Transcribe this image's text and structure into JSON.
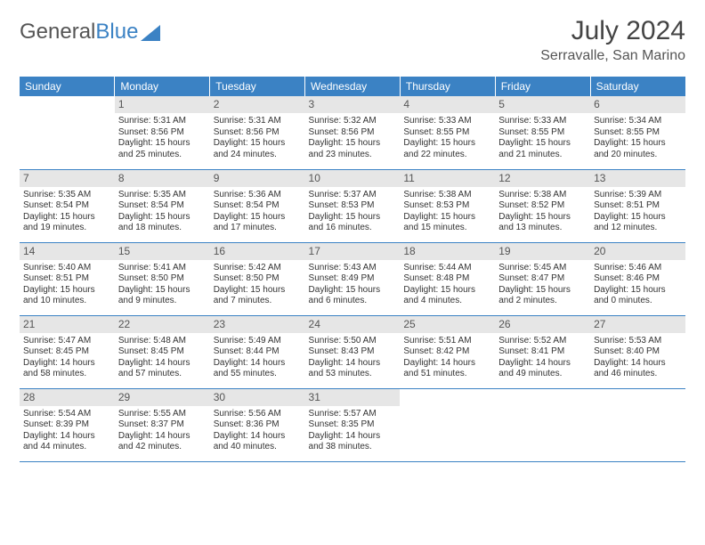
{
  "logo": {
    "text1": "General",
    "text2": "Blue"
  },
  "title": "July 2024",
  "location": "Serravalle, San Marino",
  "dayHeaders": [
    "Sunday",
    "Monday",
    "Tuesday",
    "Wednesday",
    "Thursday",
    "Friday",
    "Saturday"
  ],
  "colors": {
    "header_bg": "#3b82c4",
    "header_fg": "#ffffff",
    "daynum_bg": "#e6e6e6",
    "row_border": "#3b82c4"
  },
  "weeks": [
    [
      null,
      {
        "n": "1",
        "sr": "Sunrise: 5:31 AM",
        "ss": "Sunset: 8:56 PM",
        "d1": "Daylight: 15 hours",
        "d2": "and 25 minutes."
      },
      {
        "n": "2",
        "sr": "Sunrise: 5:31 AM",
        "ss": "Sunset: 8:56 PM",
        "d1": "Daylight: 15 hours",
        "d2": "and 24 minutes."
      },
      {
        "n": "3",
        "sr": "Sunrise: 5:32 AM",
        "ss": "Sunset: 8:56 PM",
        "d1": "Daylight: 15 hours",
        "d2": "and 23 minutes."
      },
      {
        "n": "4",
        "sr": "Sunrise: 5:33 AM",
        "ss": "Sunset: 8:55 PM",
        "d1": "Daylight: 15 hours",
        "d2": "and 22 minutes."
      },
      {
        "n": "5",
        "sr": "Sunrise: 5:33 AM",
        "ss": "Sunset: 8:55 PM",
        "d1": "Daylight: 15 hours",
        "d2": "and 21 minutes."
      },
      {
        "n": "6",
        "sr": "Sunrise: 5:34 AM",
        "ss": "Sunset: 8:55 PM",
        "d1": "Daylight: 15 hours",
        "d2": "and 20 minutes."
      }
    ],
    [
      {
        "n": "7",
        "sr": "Sunrise: 5:35 AM",
        "ss": "Sunset: 8:54 PM",
        "d1": "Daylight: 15 hours",
        "d2": "and 19 minutes."
      },
      {
        "n": "8",
        "sr": "Sunrise: 5:35 AM",
        "ss": "Sunset: 8:54 PM",
        "d1": "Daylight: 15 hours",
        "d2": "and 18 minutes."
      },
      {
        "n": "9",
        "sr": "Sunrise: 5:36 AM",
        "ss": "Sunset: 8:54 PM",
        "d1": "Daylight: 15 hours",
        "d2": "and 17 minutes."
      },
      {
        "n": "10",
        "sr": "Sunrise: 5:37 AM",
        "ss": "Sunset: 8:53 PM",
        "d1": "Daylight: 15 hours",
        "d2": "and 16 minutes."
      },
      {
        "n": "11",
        "sr": "Sunrise: 5:38 AM",
        "ss": "Sunset: 8:53 PM",
        "d1": "Daylight: 15 hours",
        "d2": "and 15 minutes."
      },
      {
        "n": "12",
        "sr": "Sunrise: 5:38 AM",
        "ss": "Sunset: 8:52 PM",
        "d1": "Daylight: 15 hours",
        "d2": "and 13 minutes."
      },
      {
        "n": "13",
        "sr": "Sunrise: 5:39 AM",
        "ss": "Sunset: 8:51 PM",
        "d1": "Daylight: 15 hours",
        "d2": "and 12 minutes."
      }
    ],
    [
      {
        "n": "14",
        "sr": "Sunrise: 5:40 AM",
        "ss": "Sunset: 8:51 PM",
        "d1": "Daylight: 15 hours",
        "d2": "and 10 minutes."
      },
      {
        "n": "15",
        "sr": "Sunrise: 5:41 AM",
        "ss": "Sunset: 8:50 PM",
        "d1": "Daylight: 15 hours",
        "d2": "and 9 minutes."
      },
      {
        "n": "16",
        "sr": "Sunrise: 5:42 AM",
        "ss": "Sunset: 8:50 PM",
        "d1": "Daylight: 15 hours",
        "d2": "and 7 minutes."
      },
      {
        "n": "17",
        "sr": "Sunrise: 5:43 AM",
        "ss": "Sunset: 8:49 PM",
        "d1": "Daylight: 15 hours",
        "d2": "and 6 minutes."
      },
      {
        "n": "18",
        "sr": "Sunrise: 5:44 AM",
        "ss": "Sunset: 8:48 PM",
        "d1": "Daylight: 15 hours",
        "d2": "and 4 minutes."
      },
      {
        "n": "19",
        "sr": "Sunrise: 5:45 AM",
        "ss": "Sunset: 8:47 PM",
        "d1": "Daylight: 15 hours",
        "d2": "and 2 minutes."
      },
      {
        "n": "20",
        "sr": "Sunrise: 5:46 AM",
        "ss": "Sunset: 8:46 PM",
        "d1": "Daylight: 15 hours",
        "d2": "and 0 minutes."
      }
    ],
    [
      {
        "n": "21",
        "sr": "Sunrise: 5:47 AM",
        "ss": "Sunset: 8:45 PM",
        "d1": "Daylight: 14 hours",
        "d2": "and 58 minutes."
      },
      {
        "n": "22",
        "sr": "Sunrise: 5:48 AM",
        "ss": "Sunset: 8:45 PM",
        "d1": "Daylight: 14 hours",
        "d2": "and 57 minutes."
      },
      {
        "n": "23",
        "sr": "Sunrise: 5:49 AM",
        "ss": "Sunset: 8:44 PM",
        "d1": "Daylight: 14 hours",
        "d2": "and 55 minutes."
      },
      {
        "n": "24",
        "sr": "Sunrise: 5:50 AM",
        "ss": "Sunset: 8:43 PM",
        "d1": "Daylight: 14 hours",
        "d2": "and 53 minutes."
      },
      {
        "n": "25",
        "sr": "Sunrise: 5:51 AM",
        "ss": "Sunset: 8:42 PM",
        "d1": "Daylight: 14 hours",
        "d2": "and 51 minutes."
      },
      {
        "n": "26",
        "sr": "Sunrise: 5:52 AM",
        "ss": "Sunset: 8:41 PM",
        "d1": "Daylight: 14 hours",
        "d2": "and 49 minutes."
      },
      {
        "n": "27",
        "sr": "Sunrise: 5:53 AM",
        "ss": "Sunset: 8:40 PM",
        "d1": "Daylight: 14 hours",
        "d2": "and 46 minutes."
      }
    ],
    [
      {
        "n": "28",
        "sr": "Sunrise: 5:54 AM",
        "ss": "Sunset: 8:39 PM",
        "d1": "Daylight: 14 hours",
        "d2": "and 44 minutes."
      },
      {
        "n": "29",
        "sr": "Sunrise: 5:55 AM",
        "ss": "Sunset: 8:37 PM",
        "d1": "Daylight: 14 hours",
        "d2": "and 42 minutes."
      },
      {
        "n": "30",
        "sr": "Sunrise: 5:56 AM",
        "ss": "Sunset: 8:36 PM",
        "d1": "Daylight: 14 hours",
        "d2": "and 40 minutes."
      },
      {
        "n": "31",
        "sr": "Sunrise: 5:57 AM",
        "ss": "Sunset: 8:35 PM",
        "d1": "Daylight: 14 hours",
        "d2": "and 38 minutes."
      },
      null,
      null,
      null
    ]
  ]
}
